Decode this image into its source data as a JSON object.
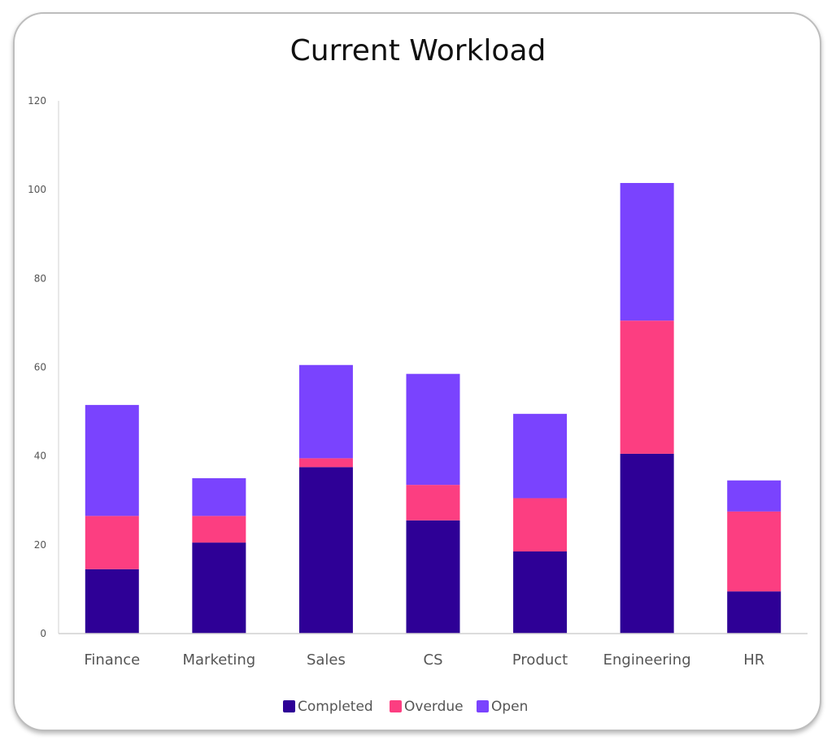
{
  "chart_data": {
    "type": "bar",
    "stacked": true,
    "title": "Current Workload",
    "xlabel": "",
    "ylabel": "",
    "ylim": [
      0,
      120
    ],
    "yticks": [
      0,
      20,
      40,
      60,
      80,
      100,
      120
    ],
    "categories": [
      "Finance",
      "Marketing",
      "Sales",
      "CS",
      "Product",
      "Engineering",
      "HR"
    ],
    "series": [
      {
        "name": "Completed",
        "color": "#2e0096",
        "values": [
          14.5,
          20.5,
          37.5,
          25.5,
          18.5,
          40.5,
          9.5
        ]
      },
      {
        "name": "Overdue",
        "color": "#fc3e81",
        "values": [
          12,
          6,
          2,
          8,
          12,
          30,
          18
        ]
      },
      {
        "name": "Open",
        "color": "#7a43fe",
        "values": [
          25,
          8.5,
          21,
          25,
          19,
          31,
          7
        ]
      }
    ],
    "grid": false,
    "legend": "bottom"
  }
}
